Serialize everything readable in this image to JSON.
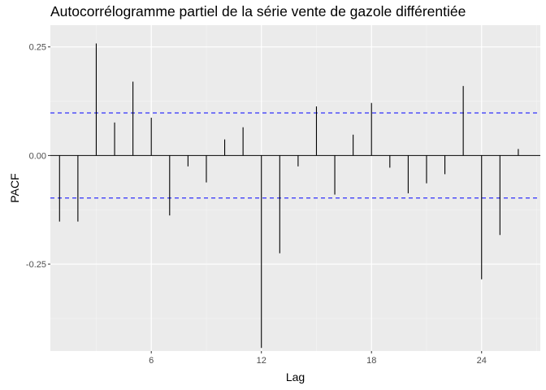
{
  "chart_data": {
    "type": "bar",
    "title": "Autocorrélogramme partiel de la série vente de gazole différentiée",
    "xlabel": "Lag",
    "ylabel": "PACF",
    "xlim": [
      0.5,
      27.2
    ],
    "ylim": [
      -0.45,
      0.3
    ],
    "x_ticks": [
      6,
      12,
      18,
      24
    ],
    "x_tick_labels": [
      "6",
      "12",
      "18",
      "24"
    ],
    "y_ticks": [
      0.25,
      0,
      -0.25
    ],
    "y_tick_labels": [
      "0.25",
      "0.00",
      "-0.25"
    ],
    "confidence_bounds": [
      0.098,
      -0.098
    ],
    "lags": [
      1,
      2,
      3,
      4,
      5,
      6,
      7,
      8,
      9,
      10,
      11,
      12,
      13,
      14,
      15,
      16,
      17,
      18,
      19,
      20,
      21,
      22,
      23,
      24,
      25,
      26
    ],
    "values": [
      -0.152,
      -0.152,
      0.258,
      0.076,
      0.17,
      0.087,
      -0.138,
      -0.025,
      -0.062,
      0.037,
      0.065,
      -0.443,
      -0.225,
      -0.025,
      0.113,
      -0.09,
      0.048,
      0.121,
      -0.028,
      -0.087,
      -0.064,
      -0.043,
      0.16,
      -0.285,
      -0.183,
      0.015
    ],
    "grid": true,
    "colors": {
      "panel_background": "#ebebeb",
      "grid_major": "#ffffff",
      "grid_minor": "#f5f5f5",
      "bars": "#000000",
      "confidence_lines": "#0000ff"
    }
  }
}
